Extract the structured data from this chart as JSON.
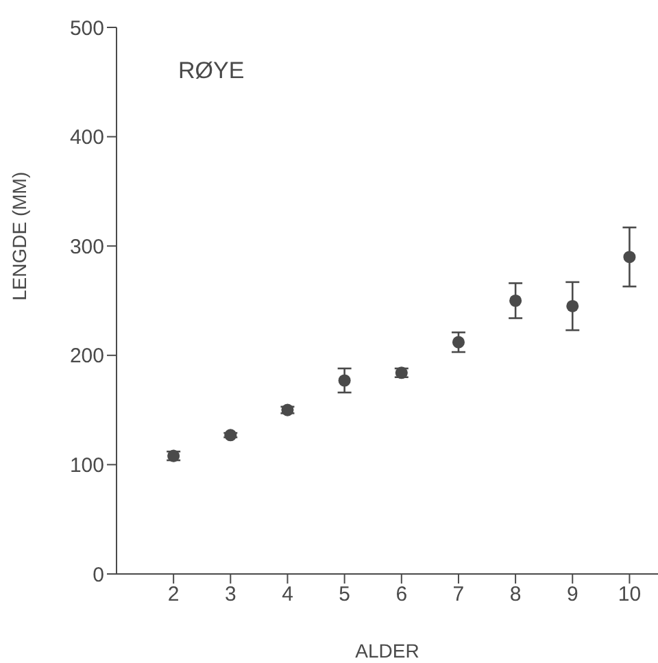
{
  "chart_data": {
    "type": "scatter",
    "title": "RØYE",
    "xlabel": "ALDER",
    "ylabel": "LENGDE (MM)",
    "x": [
      2,
      3,
      4,
      5,
      6,
      7,
      8,
      9,
      10
    ],
    "values": [
      108,
      127,
      150,
      177,
      184,
      212,
      250,
      245,
      290
    ],
    "errors": [
      4,
      2,
      3,
      11,
      4,
      9,
      16,
      22,
      27
    ],
    "color": "#4a4a4a",
    "marker": "circle",
    "xlim": [
      1,
      10.5
    ],
    "xticks": [
      2,
      3,
      4,
      5,
      6,
      7,
      8,
      9,
      10
    ],
    "ylim": [
      0,
      500
    ],
    "yticks": [
      0,
      100,
      200,
      300,
      400,
      500
    ],
    "grid": false,
    "legend": false
  }
}
